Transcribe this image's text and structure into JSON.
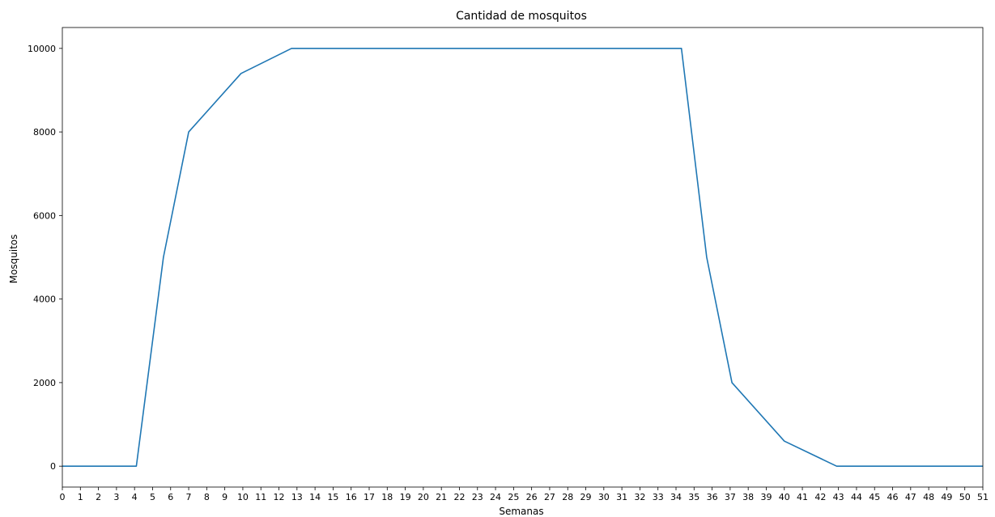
{
  "chart_data": {
    "type": "line",
    "title": "Cantidad de mosquitos",
    "xlabel": "Semanas",
    "ylabel": "Mosquitos",
    "xlim": [
      0,
      51
    ],
    "ylim": [
      -500,
      10500
    ],
    "xticks": [
      0,
      1,
      2,
      3,
      4,
      5,
      6,
      7,
      8,
      9,
      10,
      11,
      12,
      13,
      14,
      15,
      16,
      17,
      18,
      19,
      20,
      21,
      22,
      23,
      24,
      25,
      26,
      27,
      28,
      29,
      30,
      31,
      32,
      33,
      34,
      35,
      36,
      37,
      38,
      39,
      40,
      41,
      42,
      43,
      44,
      45,
      46,
      47,
      48,
      49,
      50,
      51
    ],
    "yticks": [
      0,
      2000,
      4000,
      6000,
      8000,
      10000
    ],
    "grid": false,
    "line_color": "#1f77b4",
    "series": [
      {
        "x": [
          0,
          4.1,
          5.6,
          7.0,
          9.9,
          12.7,
          17.1,
          34.3,
          35.7,
          37.1,
          40.0,
          42.9,
          51
        ],
        "y": [
          0,
          0,
          5000,
          8000,
          9400,
          10000,
          10000,
          10000,
          5000,
          2000,
          600,
          0,
          0
        ]
      }
    ]
  }
}
